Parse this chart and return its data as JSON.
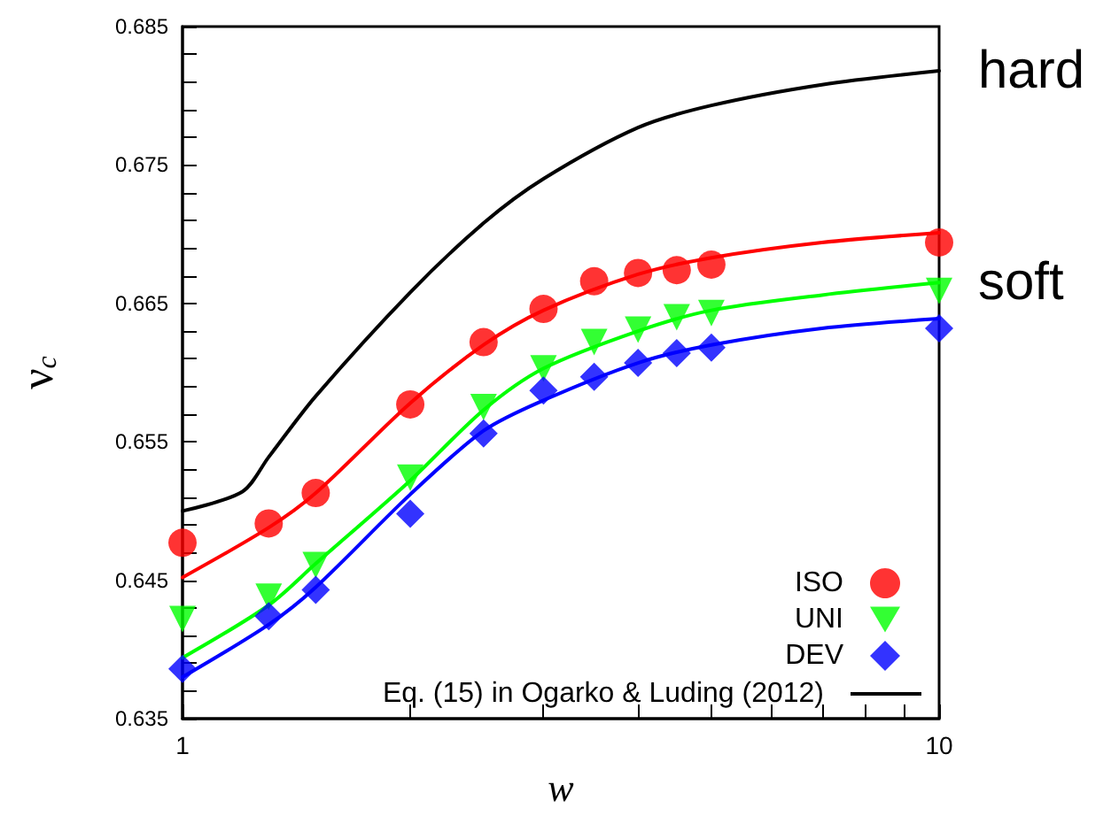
{
  "chart_data": {
    "type": "line",
    "xlabel": "w",
    "ylabel": "ν$_{c}$",
    "log": "x",
    "xlim": [
      1,
      10
    ],
    "ylim": [
      0.635,
      0.685
    ],
    "xticks": [
      1,
      {
        "value": 2,
        "label": null
      },
      {
        "value": 3,
        "label": null
      },
      {
        "value": 4,
        "label": null
      },
      {
        "value": 5,
        "label": null
      },
      {
        "value": 6,
        "label": null
      },
      {
        "value": 7,
        "label": null
      },
      {
        "value": 8,
        "label": null
      },
      {
        "value": 9,
        "label": null
      },
      10
    ],
    "yticks": [
      0.635,
      {
        "value": 0.637,
        "label": null
      },
      {
        "value": 0.639,
        "label": null
      },
      {
        "value": 0.641,
        "label": null
      },
      {
        "value": 0.643,
        "label": null
      },
      0.645,
      {
        "value": 0.647,
        "label": null
      },
      {
        "value": 0.649,
        "label": null
      },
      {
        "value": 0.651,
        "label": null
      },
      {
        "value": 0.653,
        "label": null
      },
      0.655,
      {
        "value": 0.657,
        "label": null
      },
      {
        "value": 0.659,
        "label": null
      },
      {
        "value": 0.661,
        "label": null
      },
      {
        "value": 0.663,
        "label": null
      },
      0.665,
      {
        "value": 0.667,
        "label": null
      },
      {
        "value": 0.669,
        "label": null
      },
      {
        "value": 0.671,
        "label": null
      },
      {
        "value": 0.673,
        "label": null
      },
      0.675,
      {
        "value": 0.677,
        "label": null
      },
      {
        "value": 0.679,
        "label": null
      },
      {
        "value": 0.681,
        "label": null
      },
      {
        "value": 0.683,
        "label": null
      },
      0.685
    ],
    "grid": false,
    "legend": "bottom right",
    "annotations": [
      {
        "text": "hard",
        "x": 10,
        "y": 0.6818
      },
      {
        "text": "soft",
        "x": 10,
        "y": 0.6665
      }
    ],
    "series": [
      {
        "type": "line",
        "color": "#ff0000",
        "marker": "none",
        "x": [
          1,
          1.3,
          1.5,
          2,
          2.5,
          3,
          4,
          5,
          7,
          10
        ],
        "values": [
          0.6452,
          0.6488,
          0.6513,
          0.6578,
          0.662,
          0.6645,
          0.6671,
          0.6683,
          0.6694,
          0.6701
        ]
      },
      {
        "type": "line",
        "color": "#00ff00",
        "marker": "none",
        "x": [
          1,
          1.3,
          1.5,
          2,
          2.5,
          3,
          4,
          5,
          7,
          10
        ],
        "values": [
          0.6394,
          0.6432,
          0.6462,
          0.6522,
          0.6573,
          0.6603,
          0.663,
          0.6645,
          0.6656,
          0.6665
        ]
      },
      {
        "type": "line",
        "color": "#0000ff",
        "marker": "none",
        "x": [
          1,
          1.3,
          1.5,
          2,
          2.5,
          3,
          4,
          5,
          7,
          10
        ],
        "values": [
          0.638,
          0.6418,
          0.6445,
          0.6512,
          0.6558,
          0.658,
          0.6607,
          0.662,
          0.6632,
          0.6639
        ]
      },
      {
        "type": "scatter",
        "name": "ISO",
        "color": "#ff0000",
        "marker": "circle",
        "x": [
          1,
          1.3,
          1.5,
          2,
          2.5,
          3,
          3.5,
          4,
          4.5,
          5,
          10
        ],
        "values": [
          0.6477,
          0.6491,
          0.6513,
          0.6577,
          0.6622,
          0.6646,
          0.6666,
          0.6672,
          0.6674,
          0.6678,
          0.6694
        ]
      },
      {
        "type": "scatter",
        "name": "UNI",
        "color": "#00ff00",
        "marker": "triangle",
        "x": [
          1,
          1.3,
          1.5,
          2,
          2.5,
          3,
          3.5,
          4,
          4.5,
          5,
          10
        ],
        "values": [
          0.6422,
          0.6438,
          0.6461,
          0.6524,
          0.6575,
          0.6603,
          0.6622,
          0.6631,
          0.664,
          0.6643,
          0.6659
        ]
      },
      {
        "type": "scatter",
        "name": "DEV",
        "color": "#0000ff",
        "marker": "diamond",
        "x": [
          1,
          1.3,
          1.5,
          2,
          2.5,
          3,
          3.5,
          4,
          4.5,
          5,
          10
        ],
        "values": [
          0.6386,
          0.6424,
          0.6443,
          0.6498,
          0.6556,
          0.6587,
          0.6597,
          0.6607,
          0.6614,
          0.6618,
          0.6632
        ]
      },
      {
        "type": "line",
        "name": "Eq. (15) in Ogarko & Luding (2012)",
        "color": "#000000",
        "marker": "none",
        "x": [
          1,
          1.2,
          1.3,
          1.5,
          2,
          2.5,
          3,
          4,
          5,
          7,
          10
        ],
        "values": [
          0.65,
          0.6514,
          0.6539,
          0.6583,
          0.6658,
          0.6708,
          0.674,
          0.6777,
          0.6793,
          0.6808,
          0.6818
        ]
      }
    ]
  }
}
